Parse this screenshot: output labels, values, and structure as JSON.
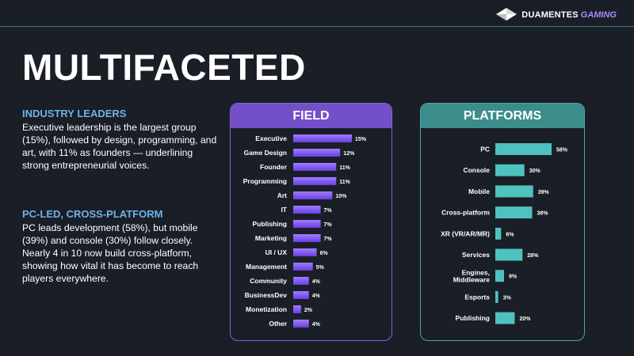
{
  "brand": {
    "name": "DUAMENTES",
    "accent": "GAMING"
  },
  "title": "MULTIFACETED",
  "sections": [
    {
      "heading": "INDUSTRY LEADERS",
      "body": "Executive leadership is the largest group (15%), followed by design, programming, and art, with 11% as founders — underlining strong entrepreneurial voices."
    },
    {
      "heading": "PC-LED, CROSS-PLATFORM",
      "body": "PC leads development (58%), but mobile (39%) and console (30%) follow closely. Nearly 4 in 10 now build cross-platform, showing how vital it has become to reach players everywhere."
    }
  ],
  "colors": {
    "background": "#1a1e27",
    "field_accent": "#7350c9",
    "platform_accent": "#3b8d8b",
    "heading_blue": "#6cb4e6"
  },
  "chart_data": [
    {
      "type": "bar",
      "orientation": "horizontal",
      "title": "FIELD",
      "categories": [
        "Executive",
        "Game Design",
        "Founder",
        "Programming",
        "Art",
        "IT",
        "Publishing",
        "Marketing",
        "UI / UX",
        "Management",
        "Community",
        "BusinessDev",
        "Monetization",
        "Other"
      ],
      "values": [
        15,
        12,
        11,
        11,
        10,
        7,
        7,
        7,
        6,
        5,
        4,
        4,
        2,
        4
      ],
      "value_labels": [
        "15%",
        "12%",
        "11%",
        "11%",
        "10%",
        "7%",
        "7%",
        "7%",
        "6%",
        "5%",
        "4%",
        "4%",
        "2%",
        "4%"
      ],
      "unit": "%",
      "xlim": [
        0,
        15
      ],
      "grid": false,
      "bar_style": "gradient-purple"
    },
    {
      "type": "bar",
      "orientation": "horizontal",
      "title": "PLATFORMS",
      "categories": [
        "PC",
        "Console",
        "Mobile",
        "Cross-platform",
        "XR (VR/AR/MR)",
        "Services",
        "Engines, Middleware",
        "Esports",
        "Publishing"
      ],
      "values": [
        58,
        30,
        39,
        38,
        6,
        28,
        9,
        3,
        20
      ],
      "value_labels": [
        "58%",
        "30%",
        "39%",
        "38%",
        "6%",
        "28%",
        "9%",
        "3%",
        "20%"
      ],
      "unit": "%",
      "xlim": [
        0,
        58
      ],
      "grid": false,
      "bar_style": "teal"
    }
  ]
}
